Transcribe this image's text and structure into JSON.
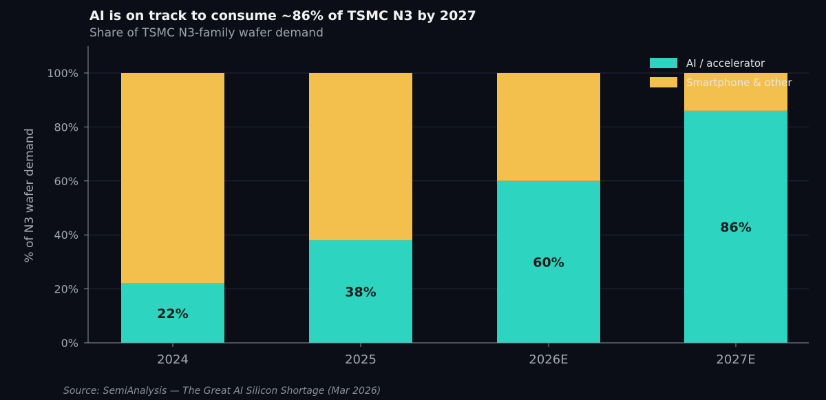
{
  "chart_data": {
    "type": "bar",
    "stacked": true,
    "title": "AI is on track to consume ~86% of TSMC N3 by 2027",
    "subtitle": "Share of TSMC N3-family wafer demand",
    "xlabel": "",
    "ylabel": "% of N3 wafer demand",
    "categories": [
      "2024",
      "2025",
      "2026E",
      "2027E"
    ],
    "series": [
      {
        "name": "AI / accelerator",
        "values": [
          22,
          38,
          60,
          86
        ],
        "color": "#2dd4bf"
      },
      {
        "name": "Smartphone & other",
        "values": [
          78,
          62,
          40,
          14
        ],
        "color": "#f4c04d"
      }
    ],
    "data_labels": [
      "22%",
      "38%",
      "60%",
      "86%"
    ],
    "ylim": [
      0,
      100
    ],
    "yticks": [
      0,
      20,
      40,
      60,
      80,
      100
    ],
    "ytick_labels": [
      "0%",
      "20%",
      "40%",
      "60%",
      "80%",
      "100%"
    ],
    "grid": true,
    "legend_position": "top-right",
    "source": "Source: SemiAnalysis — The Great AI Silicon Shortage (Mar 2026)"
  }
}
